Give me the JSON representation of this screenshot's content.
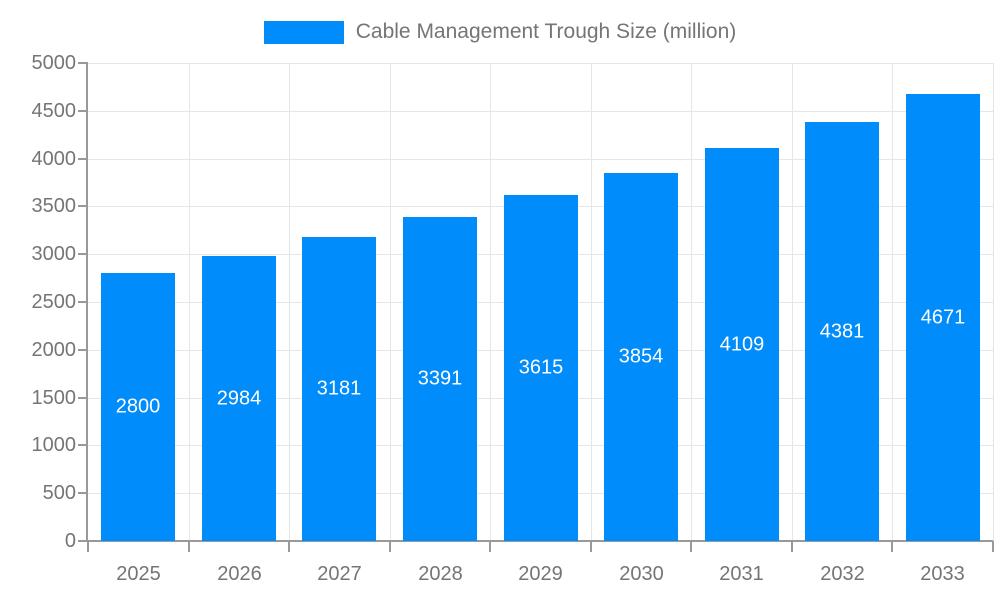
{
  "chart_data": {
    "type": "bar",
    "categories": [
      "2025",
      "2026",
      "2027",
      "2028",
      "2029",
      "2030",
      "2031",
      "2032",
      "2033"
    ],
    "series": [
      {
        "name": "Cable Management Trough Size (million)",
        "values": [
          2800,
          2984,
          3181,
          3391,
          3615,
          3854,
          4109,
          4381,
          4671
        ]
      }
    ],
    "legend": [
      "Cable Management Trough Size (million)"
    ],
    "legend_position": "top",
    "xlabel": "",
    "ylabel": "",
    "ylim": [
      0,
      5000
    ],
    "ytick_interval": 500,
    "yticks": [
      0,
      500,
      1000,
      1500,
      2000,
      2500,
      3000,
      3500,
      4000,
      4500,
      5000
    ],
    "grid": true,
    "bar_labels_inside": true,
    "colors": {
      "bar": "#008CFA",
      "bar_label_text": "#ffffff",
      "axis": "#999999",
      "gridline": "#e6e6e6",
      "axis_text": "#757575"
    }
  }
}
